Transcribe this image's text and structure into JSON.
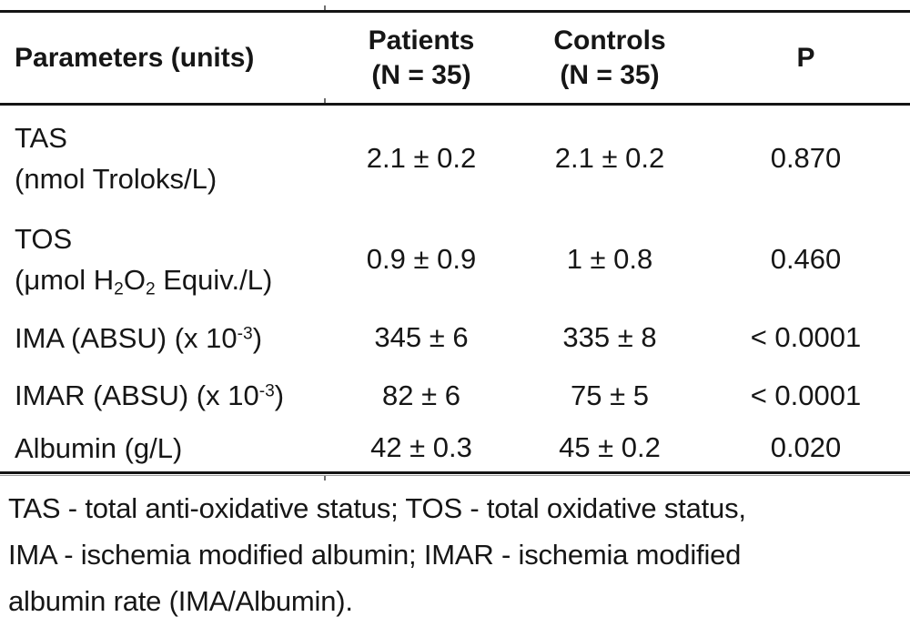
{
  "table": {
    "header": {
      "parameters": "Parameters (units)",
      "patients": "Patients\n(N = 35)",
      "controls": "Controls\n(N = 35)",
      "p": "P"
    },
    "rows": [
      {
        "param_lines": [
          [
            {
              "t": "TAS"
            }
          ],
          [
            {
              "t": "(nmol Troloks/L)"
            }
          ]
        ],
        "patients": "2.1 ± 0.2",
        "controls": "2.1 ± 0.2",
        "p": "0.870"
      },
      {
        "param_lines": [
          [
            {
              "t": "TOS"
            }
          ],
          [
            {
              "t": "(μmol H"
            },
            {
              "t": "2",
              "s": "sub"
            },
            {
              "t": "O"
            },
            {
              "t": "2",
              "s": "sub"
            },
            {
              "t": " Equiv./L)"
            }
          ]
        ],
        "patients": "0.9 ± 0.9",
        "controls": "1 ± 0.8",
        "p": "0.460"
      },
      {
        "param_lines": [
          [
            {
              "t": "IMA (ABSU) (x 10"
            },
            {
              "t": "-3",
              "s": "sup"
            },
            {
              "t": ")"
            }
          ]
        ],
        "patients": "345 ± 6",
        "controls": "335 ± 8",
        "p": "< 0.0001"
      },
      {
        "param_lines": [
          [
            {
              "t": "IMAR (ABSU) (x 10"
            },
            {
              "t": "-3",
              "s": "sup"
            },
            {
              "t": ")"
            }
          ]
        ],
        "patients": "82 ± 6",
        "controls": "75 ± 5",
        "p": "< 0.0001"
      },
      {
        "param_lines": [
          [
            {
              "t": "Albumin (g/L)"
            }
          ]
        ],
        "patients": "42 ± 0.3",
        "controls": "45 ± 0.2",
        "p": "0.020"
      }
    ]
  },
  "footnote": {
    "lines": [
      "TAS - total anti-oxidative status; TOS - total oxidative status,",
      "IMA - ischemia modified albumin; IMAR - ischemia modified",
      "albumin rate (IMA/Albumin)."
    ]
  },
  "colors": {
    "text": "#161616",
    "rule": "#141414",
    "background": "#ffffff"
  }
}
